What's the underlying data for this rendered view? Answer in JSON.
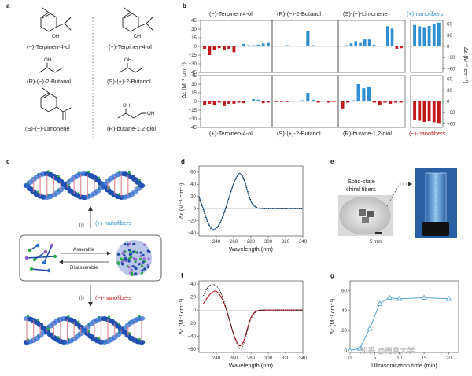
{
  "panel_a": {
    "letter": "a",
    "molecules": [
      {
        "name": "(−)-Terpinen-4-ol",
        "oh": "OH"
      },
      {
        "name": "(+)-Terpinen-4-ol",
        "oh": "OH"
      },
      {
        "name": "(R)-(−)-2-Butanol",
        "oh": "OH"
      },
      {
        "name": "(S)-(+)-2-Butanol",
        "oh": "OH"
      },
      {
        "name": "(S)-(−)-Limonene",
        "oh": ""
      },
      {
        "name": "(R)-butane-1,2-diol",
        "oh": "OH",
        "oh2": "OH"
      }
    ]
  },
  "panel_b": {
    "letter": "b",
    "top_titles": [
      "(−)-Terpinen-4-ol",
      "(R)-(−)-2-Butanol",
      "(S)-(−)-Limonene",
      "(+)-nanofibers"
    ],
    "bottom_titles": [
      "(+)-Terpinen-4-ol",
      "(S)-(+)-2-Butanol",
      "(R)-butane-1,2-diol",
      "(−)-nanofibers"
    ],
    "ylabel": "Δε (M⁻¹ cm⁻¹)",
    "ylabel_right": "Δε (M⁻¹ cm⁻¹)"
  },
  "panel_c": {
    "letter": "c",
    "plus_label": "(+)-nanofibers",
    "minus_label": "(−)-nanofibers",
    "assemble": "Assemble",
    "disassemble": "Disassemble"
  },
  "panel_d": {
    "letter": "d"
  },
  "panel_e": {
    "letter": "e",
    "caption_line1": "Solid-state",
    "caption_line2": "chiral fibers",
    "scale": "5 mm"
  },
  "panel_f": {
    "letter": "f"
  },
  "panel_g": {
    "letter": "g"
  },
  "watermark": "知乎 @南京大学",
  "colors": {
    "blue": "#2f8fd0",
    "red": "#c0181b",
    "dotted": "#111111",
    "spectrum_blue": "#3b7fb8"
  },
  "chart_data": [
    {
      "type": "bar",
      "panel": "b",
      "ylabel": "Δε (M⁻¹ cm⁻¹)",
      "ylim_top": [
        -45,
        45
      ],
      "ylim_bottom": [
        -45,
        45
      ],
      "yticks_left": [
        45,
        30,
        15,
        0,
        -15,
        -30,
        -45
      ],
      "yticks_right": [
        60,
        30,
        0,
        -30,
        -60
      ],
      "subplots": [
        {
          "title": "(−)-Terpinen-4-ol",
          "row": "top",
          "values": [
            -4,
            -15,
            -6,
            -3,
            -6,
            -4,
            -10,
            1,
            4,
            2,
            2,
            3,
            5,
            6
          ]
        },
        {
          "title": "(R)-(−)-2-Butanol",
          "row": "top",
          "values": [
            1,
            1,
            2,
            0,
            0,
            1,
            26,
            2,
            1,
            0,
            0,
            1
          ]
        },
        {
          "title": "(S)-(−)-Limonene",
          "row": "top",
          "values": [
            1,
            2,
            5,
            9,
            6,
            12,
            12,
            3,
            0,
            0,
            35,
            31,
            -4,
            -3
          ]
        },
        {
          "title": "(+)-nanofibers",
          "row": "top",
          "values": [
            58,
            54,
            52,
            55,
            61,
            64
          ]
        },
        {
          "title": "(+)-Terpinen-4-ol",
          "row": "bottom",
          "values": [
            -6,
            -4,
            -6,
            -2,
            -8,
            -4,
            -4,
            -2,
            -3,
            1,
            4,
            3,
            -3,
            -2
          ]
        },
        {
          "title": "(S)-(+)-2-Butanol",
          "row": "bottom",
          "values": [
            -1,
            -1,
            -1,
            0,
            0,
            2,
            15,
            3,
            -2,
            0,
            -2,
            -1
          ]
        },
        {
          "title": "(R)-butane-1,2-diol",
          "row": "bottom",
          "values": [
            -12,
            -2,
            2,
            30,
            23,
            26,
            -2,
            -6,
            -2,
            -4,
            -2,
            -2
          ]
        },
        {
          "title": "(−)-nanofibers",
          "row": "bottom",
          "values": [
            -50,
            -52,
            -55,
            -53,
            -56,
            -60
          ]
        }
      ]
    },
    {
      "type": "line",
      "panel": "d",
      "xlabel": "Wavelength (nm)",
      "ylabel": "Δε (M⁻¹ cm⁻¹)",
      "xlim": [
        220,
        340
      ],
      "ylim": [
        -45,
        70
      ],
      "xticks": [
        240,
        260,
        280,
        300,
        320,
        340
      ],
      "yticks": [
        -40,
        -20,
        0,
        20,
        40,
        60
      ],
      "series": [
        {
          "name": "solid",
          "style": "solid",
          "x": [
            220,
            225,
            230,
            235,
            240,
            245,
            250,
            255,
            260,
            265,
            268,
            272,
            276,
            280,
            285,
            290,
            300,
            320,
            340
          ],
          "y": [
            20,
            0,
            -22,
            -35,
            -33,
            -22,
            -3,
            20,
            42,
            57,
            58,
            48,
            28,
            10,
            2,
            0,
            0,
            0,
            0
          ]
        },
        {
          "name": "dotted",
          "style": "dotted",
          "x": [
            220,
            225,
            230,
            235,
            240,
            245,
            250,
            255,
            260,
            265,
            268,
            272,
            276,
            280,
            285,
            290,
            300,
            320,
            340
          ],
          "y": [
            18,
            -2,
            -25,
            -37,
            -34,
            -23,
            -4,
            19,
            41,
            56,
            59,
            50,
            30,
            12,
            3,
            0,
            0,
            0,
            0
          ]
        }
      ]
    },
    {
      "type": "line",
      "panel": "f",
      "xlabel": "Wavelength (nm)",
      "ylabel": "Δε (M⁻¹ cm⁻¹)",
      "xlim": [
        220,
        340
      ],
      "ylim": [
        -65,
        45
      ],
      "xticks": [
        240,
        260,
        280,
        300,
        320,
        340
      ],
      "yticks": [
        -60,
        -40,
        -20,
        0,
        20,
        40
      ],
      "series": [
        {
          "name": "solid",
          "style": "solid",
          "x": [
            225,
            230,
            235,
            240,
            245,
            250,
            255,
            260,
            265,
            268,
            272,
            276,
            280,
            285,
            290,
            300,
            320,
            340
          ],
          "y": [
            10,
            20,
            28,
            30,
            22,
            8,
            -15,
            -38,
            -53,
            -56,
            -48,
            -28,
            -10,
            -2,
            0,
            0,
            0,
            0
          ]
        },
        {
          "name": "dotted",
          "style": "dotted",
          "x": [
            225,
            230,
            235,
            240,
            245,
            250,
            255,
            260,
            265,
            268,
            272,
            276,
            280,
            285,
            290,
            300,
            320,
            340
          ],
          "y": [
            22,
            36,
            40,
            38,
            28,
            10,
            -14,
            -38,
            -56,
            -61,
            -52,
            -30,
            -12,
            -3,
            0,
            0,
            0,
            0
          ]
        }
      ]
    },
    {
      "type": "line",
      "panel": "g",
      "xlabel": "Ultrasonication time (min)",
      "ylabel": "Δε (M⁻¹ cm⁻¹)",
      "xlim": [
        0,
        22
      ],
      "ylim": [
        -2,
        70
      ],
      "xticks": [
        0,
        5,
        10,
        15,
        20
      ],
      "yticks": [
        0,
        20,
        40,
        60
      ],
      "series": [
        {
          "name": "CD intensity",
          "x": [
            0,
            2,
            4,
            6,
            8,
            10,
            15,
            20
          ],
          "y": [
            0,
            2,
            22,
            47,
            53,
            52,
            53,
            52
          ]
        }
      ]
    }
  ]
}
